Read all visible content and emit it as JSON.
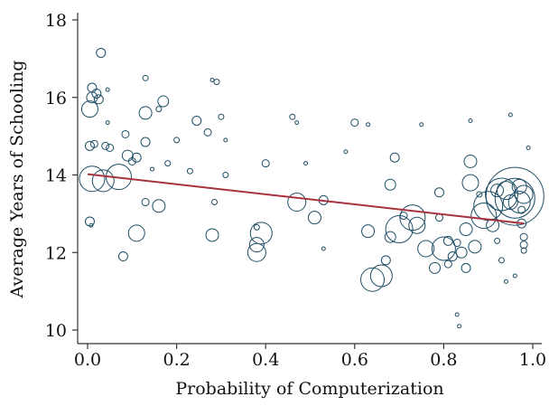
{
  "chart_data": {
    "type": "scatter",
    "title": "",
    "xlabel": "Probability of Computerization",
    "ylabel": "Average Years of Schooling",
    "xlim": [
      0.0,
      1.0
    ],
    "ylim": [
      10.0,
      18.0
    ],
    "xticks": [
      0.0,
      0.2,
      0.4,
      0.6,
      0.8,
      1.0
    ],
    "xtick_labels": [
      "0.0",
      "0.2",
      "0.4",
      "0.6",
      "0.8",
      "1.0"
    ],
    "yticks": [
      10,
      12,
      14,
      16,
      18
    ],
    "ytick_labels": [
      "10",
      "12",
      "14",
      "16",
      "18"
    ],
    "grid": false,
    "legend": "none",
    "colors": {
      "points": "#1f4e66",
      "fit_line": "#a8323e",
      "axes": "#333333"
    },
    "fit_line": {
      "x": [
        0.0,
        0.98
      ],
      "y": [
        14.02,
        12.75
      ]
    },
    "series": [
      {
        "points": [
          {
            "x": 0.01,
            "y": 13.9,
            "r": 14
          },
          {
            "x": 0.035,
            "y": 13.85,
            "r": 12
          },
          {
            "x": 0.07,
            "y": 13.95,
            "r": 14
          },
          {
            "x": 0.005,
            "y": 15.7,
            "r": 9
          },
          {
            "x": 0.01,
            "y": 16.0,
            "r": 6
          },
          {
            "x": 0.01,
            "y": 16.25,
            "r": 5
          },
          {
            "x": 0.02,
            "y": 16.1,
            "r": 5
          },
          {
            "x": 0.025,
            "y": 15.95,
            "r": 5
          },
          {
            "x": 0.03,
            "y": 17.15,
            "r": 5
          },
          {
            "x": 0.005,
            "y": 14.75,
            "r": 5
          },
          {
            "x": 0.015,
            "y": 14.8,
            "r": 4
          },
          {
            "x": 0.04,
            "y": 14.75,
            "r": 4
          },
          {
            "x": 0.045,
            "y": 15.35,
            "r": 2
          },
          {
            "x": 0.05,
            "y": 14.7,
            "r": 4
          },
          {
            "x": 0.005,
            "y": 12.8,
            "r": 5
          },
          {
            "x": 0.008,
            "y": 12.7,
            "r": 2
          },
          {
            "x": 0.045,
            "y": 16.2,
            "r": 2
          },
          {
            "x": 0.085,
            "y": 15.05,
            "r": 4
          },
          {
            "x": 0.09,
            "y": 14.5,
            "r": 6
          },
          {
            "x": 0.1,
            "y": 14.35,
            "r": 4
          },
          {
            "x": 0.11,
            "y": 14.45,
            "r": 5
          },
          {
            "x": 0.08,
            "y": 11.9,
            "r": 5
          },
          {
            "x": 0.11,
            "y": 12.5,
            "r": 9
          },
          {
            "x": 0.13,
            "y": 13.3,
            "r": 4
          },
          {
            "x": 0.13,
            "y": 15.6,
            "r": 7
          },
          {
            "x": 0.13,
            "y": 16.5,
            "r": 3
          },
          {
            "x": 0.13,
            "y": 14.85,
            "r": 5
          },
          {
            "x": 0.16,
            "y": 15.7,
            "r": 3
          },
          {
            "x": 0.17,
            "y": 15.9,
            "r": 6
          },
          {
            "x": 0.16,
            "y": 13.2,
            "r": 7
          },
          {
            "x": 0.145,
            "y": 14.15,
            "r": 2
          },
          {
            "x": 0.18,
            "y": 14.3,
            "r": 3
          },
          {
            "x": 0.2,
            "y": 14.9,
            "r": 3
          },
          {
            "x": 0.23,
            "y": 14.1,
            "r": 3
          },
          {
            "x": 0.245,
            "y": 15.4,
            "r": 5
          },
          {
            "x": 0.27,
            "y": 15.1,
            "r": 4
          },
          {
            "x": 0.28,
            "y": 16.45,
            "r": 2
          },
          {
            "x": 0.29,
            "y": 16.4,
            "r": 3
          },
          {
            "x": 0.285,
            "y": 13.3,
            "r": 3
          },
          {
            "x": 0.28,
            "y": 12.45,
            "r": 7
          },
          {
            "x": 0.3,
            "y": 15.5,
            "r": 3
          },
          {
            "x": 0.31,
            "y": 14.9,
            "r": 2
          },
          {
            "x": 0.31,
            "y": 14.0,
            "r": 3
          },
          {
            "x": 0.38,
            "y": 12.2,
            "r": 8
          },
          {
            "x": 0.38,
            "y": 12.0,
            "r": 10
          },
          {
            "x": 0.39,
            "y": 12.5,
            "r": 12
          },
          {
            "x": 0.4,
            "y": 14.3,
            "r": 4
          },
          {
            "x": 0.38,
            "y": 12.65,
            "r": 3
          },
          {
            "x": 0.46,
            "y": 15.5,
            "r": 3
          },
          {
            "x": 0.47,
            "y": 15.35,
            "r": 2
          },
          {
            "x": 0.47,
            "y": 13.3,
            "r": 10
          },
          {
            "x": 0.49,
            "y": 14.3,
            "r": 2
          },
          {
            "x": 0.51,
            "y": 12.9,
            "r": 7
          },
          {
            "x": 0.53,
            "y": 13.35,
            "r": 5
          },
          {
            "x": 0.53,
            "y": 12.1,
            "r": 2
          },
          {
            "x": 0.58,
            "y": 14.6,
            "r": 2
          },
          {
            "x": 0.6,
            "y": 15.35,
            "r": 4
          },
          {
            "x": 0.63,
            "y": 15.3,
            "r": 2
          },
          {
            "x": 0.63,
            "y": 12.55,
            "r": 7
          },
          {
            "x": 0.64,
            "y": 11.3,
            "r": 13
          },
          {
            "x": 0.66,
            "y": 11.4,
            "r": 12
          },
          {
            "x": 0.67,
            "y": 11.8,
            "r": 5
          },
          {
            "x": 0.68,
            "y": 12.4,
            "r": 6
          },
          {
            "x": 0.68,
            "y": 13.75,
            "r": 6
          },
          {
            "x": 0.69,
            "y": 14.45,
            "r": 5
          },
          {
            "x": 0.7,
            "y": 12.6,
            "r": 15
          },
          {
            "x": 0.71,
            "y": 12.95,
            "r": 4
          },
          {
            "x": 0.73,
            "y": 12.9,
            "r": 14
          },
          {
            "x": 0.74,
            "y": 12.7,
            "r": 9
          },
          {
            "x": 0.76,
            "y": 12.1,
            "r": 9
          },
          {
            "x": 0.75,
            "y": 15.3,
            "r": 2
          },
          {
            "x": 0.78,
            "y": 11.6,
            "r": 6
          },
          {
            "x": 0.79,
            "y": 12.9,
            "r": 4
          },
          {
            "x": 0.8,
            "y": 12.1,
            "r": 13
          },
          {
            "x": 0.79,
            "y": 13.55,
            "r": 5
          },
          {
            "x": 0.81,
            "y": 11.7,
            "r": 4
          },
          {
            "x": 0.81,
            "y": 12.3,
            "r": 5
          },
          {
            "x": 0.82,
            "y": 11.9,
            "r": 5
          },
          {
            "x": 0.83,
            "y": 12.25,
            "r": 4
          },
          {
            "x": 0.83,
            "y": 10.4,
            "r": 2
          },
          {
            "x": 0.835,
            "y": 10.1,
            "r": 2
          },
          {
            "x": 0.84,
            "y": 12.0,
            "r": 6
          },
          {
            "x": 0.85,
            "y": 12.6,
            "r": 7
          },
          {
            "x": 0.85,
            "y": 11.6,
            "r": 5
          },
          {
            "x": 0.86,
            "y": 14.35,
            "r": 7
          },
          {
            "x": 0.86,
            "y": 13.8,
            "r": 9
          },
          {
            "x": 0.87,
            "y": 12.15,
            "r": 7
          },
          {
            "x": 0.86,
            "y": 15.4,
            "r": 2
          },
          {
            "x": 0.88,
            "y": 13.5,
            "r": 3
          },
          {
            "x": 0.89,
            "y": 12.95,
            "r": 14
          },
          {
            "x": 0.9,
            "y": 13.2,
            "r": 16
          },
          {
            "x": 0.91,
            "y": 12.7,
            "r": 7
          },
          {
            "x": 0.92,
            "y": 13.6,
            "r": 7
          },
          {
            "x": 0.93,
            "y": 13.5,
            "r": 18
          },
          {
            "x": 0.94,
            "y": 13.6,
            "r": 10
          },
          {
            "x": 0.95,
            "y": 13.3,
            "r": 8
          },
          {
            "x": 0.95,
            "y": 15.55,
            "r": 2
          },
          {
            "x": 0.96,
            "y": 13.45,
            "r": 32
          },
          {
            "x": 0.96,
            "y": 13.4,
            "r": 22
          },
          {
            "x": 0.97,
            "y": 13.3,
            "r": 12
          },
          {
            "x": 0.97,
            "y": 13.7,
            "r": 8
          },
          {
            "x": 0.98,
            "y": 13.5,
            "r": 10
          },
          {
            "x": 0.975,
            "y": 12.75,
            "r": 5
          },
          {
            "x": 0.98,
            "y": 12.4,
            "r": 4
          },
          {
            "x": 0.98,
            "y": 12.2,
            "r": 4
          },
          {
            "x": 0.98,
            "y": 12.05,
            "r": 3
          },
          {
            "x": 0.975,
            "y": 13.1,
            "r": 4
          },
          {
            "x": 0.99,
            "y": 14.7,
            "r": 2
          },
          {
            "x": 0.96,
            "y": 11.4,
            "r": 2
          },
          {
            "x": 0.94,
            "y": 11.25,
            "r": 2
          },
          {
            "x": 0.93,
            "y": 11.8,
            "r": 3
          },
          {
            "x": 0.92,
            "y": 12.3,
            "r": 3
          }
        ]
      }
    ]
  }
}
